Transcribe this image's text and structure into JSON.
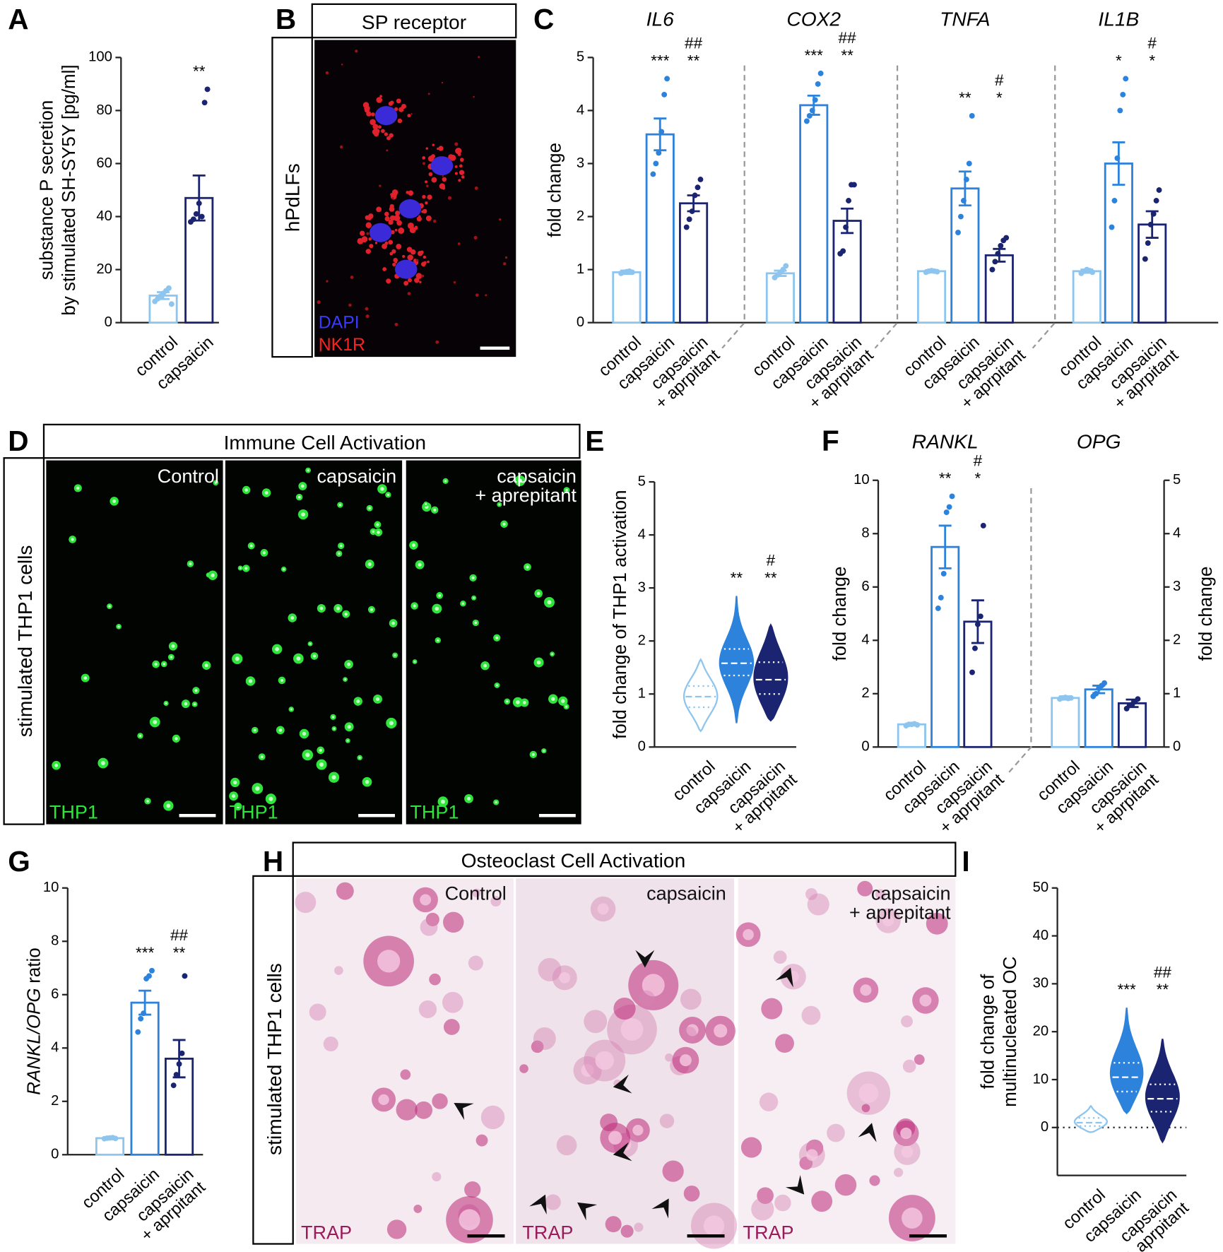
{
  "panels": {
    "labels": [
      "A",
      "B",
      "C",
      "D",
      "E",
      "F",
      "G",
      "H",
      "I"
    ]
  },
  "images": {
    "B": {
      "header": "SP receptor",
      "side": "hPdLFs",
      "stains": [
        "DAPI",
        "NK1R"
      ]
    },
    "D": {
      "header": "Immune Cell Activation",
      "side": "stimulated THP1 cells",
      "conditions": [
        "Control",
        "capsaicin",
        [
          "capsaicin",
          "+ aprepitant"
        ]
      ],
      "stain": "THP1"
    },
    "H": {
      "header": "Osteoclast Cell Activation",
      "side": "stimulated THP1 cells",
      "conditions": [
        "Control",
        "capsaicin",
        [
          "capsaicin",
          "+ aprepitant"
        ]
      ],
      "stain": "TRAP"
    }
  },
  "chart_data": [
    {
      "type": "bar",
      "ylabel": [
        "substance P secretion",
        "by stimulated SH-SY5Y [pg/ml]"
      ],
      "categories": [
        "control",
        "capsaicin"
      ],
      "colors": [
        "#8ec5ee",
        "#1a2470"
      ],
      "values": [
        10.2,
        47
      ],
      "errors": [
        1.3,
        8.5
      ],
      "points": [
        [
          8,
          9,
          10,
          11,
          12,
          13,
          7
        ],
        [
          38,
          39,
          41,
          45,
          40,
          83,
          88
        ]
      ],
      "significance": [
        null,
        "**"
      ],
      "ylim": [
        0,
        100
      ],
      "yticks": [
        0,
        20,
        40,
        60,
        80,
        100
      ]
    },
    {
      "type": "grouped_bar",
      "ylabel": [
        "fold change"
      ],
      "categories": [
        "control",
        "capsaicin",
        [
          "capsaicin",
          "+ aprpitant"
        ]
      ],
      "colors": [
        "#8ec5ee",
        "#2d83dc",
        "#1a2470"
      ],
      "ylim": [
        0,
        5
      ],
      "yticks": [
        0,
        1,
        2,
        3,
        4,
        5
      ],
      "groups": [
        {
          "name": "IL6",
          "values": [
            0.95,
            3.55,
            2.25
          ],
          "errors": [
            0.03,
            0.3,
            0.15
          ],
          "points": [
            [
              0.93,
              0.95,
              0.96,
              0.97,
              0.95
            ],
            [
              2.8,
              3.0,
              3.2,
              3.6,
              4.3,
              4.6
            ],
            [
              1.8,
              1.95,
              2.1,
              2.4,
              2.55,
              2.7
            ]
          ],
          "significance": [
            null,
            "***",
            "**"
          ],
          "significance_vs_capsaicin": [
            null,
            null,
            "##"
          ]
        },
        {
          "name": "COX2",
          "values": [
            0.93,
            4.1,
            1.92
          ],
          "errors": [
            0.05,
            0.18,
            0.23
          ],
          "points": [
            [
              0.85,
              0.9,
              0.95,
              1.0,
              1.07
            ],
            [
              3.8,
              3.9,
              4.0,
              4.2,
              4.5,
              4.7
            ],
            [
              1.3,
              1.35,
              1.8,
              2.3,
              2.6,
              2.6
            ]
          ],
          "significance": [
            null,
            "***",
            "**"
          ],
          "significance_vs_capsaicin": [
            null,
            null,
            "##"
          ]
        },
        {
          "name": "TNFA",
          "values": [
            0.97,
            2.53,
            1.27
          ],
          "errors": [
            0.02,
            0.32,
            0.12
          ],
          "points": [
            [
              0.95,
              0.97,
              0.98,
              0.97,
              0.96
            ],
            [
              1.7,
              2.0,
              2.3,
              2.7,
              3.0,
              3.9
            ],
            [
              1.0,
              1.15,
              1.3,
              1.45,
              1.55,
              1.6
            ]
          ],
          "significance": [
            null,
            "**",
            "*"
          ],
          "significance_vs_capsaicin": [
            null,
            null,
            "#"
          ]
        },
        {
          "name": "IL1B",
          "values": [
            0.97,
            3.0,
            1.85
          ],
          "errors": [
            0.03,
            0.4,
            0.25
          ],
          "points": [
            [
              0.93,
              0.97,
              1.0,
              0.98,
              0.95
            ],
            [
              1.8,
              2.3,
              3.1,
              4.0,
              4.3,
              4.6
            ],
            [
              1.2,
              1.5,
              1.85,
              2.05,
              2.3,
              2.5
            ]
          ],
          "significance": [
            null,
            "*",
            "*"
          ],
          "significance_vs_capsaicin": [
            null,
            null,
            "#"
          ]
        }
      ]
    },
    {
      "type": "violin",
      "ylabel": [
        "fold change of THP1 activation"
      ],
      "categories": [
        "control",
        "capsaicin",
        [
          "capsaicin",
          "+ aprpitant"
        ]
      ],
      "colors": [
        "#8ec5ee",
        "#2d83dc",
        "#1a2470"
      ],
      "min": [
        0.3,
        0.45,
        0.5
      ],
      "q1": [
        0.75,
        1.35,
        1.0
      ],
      "median": [
        0.95,
        1.58,
        1.27
      ],
      "q3": [
        1.15,
        1.85,
        1.6
      ],
      "max": [
        1.65,
        2.85,
        2.3
      ],
      "significance": [
        null,
        "**",
        "**"
      ],
      "significance_vs_capsaicin": [
        null,
        null,
        "#"
      ],
      "ylim": [
        0,
        5
      ],
      "yticks": [
        0,
        1,
        2,
        3,
        4,
        5
      ]
    },
    {
      "type": "grouped_bar",
      "ylabel": [
        "fold change"
      ],
      "y2label": "fold change",
      "categories": [
        "control",
        "capsaicin",
        [
          "capsaicin",
          "+ aprpitant"
        ]
      ],
      "colors": [
        "#8ec5ee",
        "#2d83dc",
        "#1a2470"
      ],
      "ylim": [
        0,
        10
      ],
      "yticks": [
        0,
        2,
        4,
        6,
        8,
        10
      ],
      "y2lim": [
        0,
        5
      ],
      "y2ticks": [
        0,
        1,
        2,
        3,
        4,
        5
      ],
      "groups": [
        {
          "name": "RANKL",
          "axis": "y",
          "values": [
            0.85,
            7.5,
            4.7
          ],
          "errors": [
            0.03,
            0.8,
            0.8
          ],
          "points": [
            [
              0.8,
              0.85,
              0.85,
              0.87,
              0.83
            ],
            [
              5.2,
              5.6,
              6.5,
              8.8,
              9.0,
              9.4
            ],
            [
              2.8,
              3.7,
              4.6,
              4.9,
              8.3
            ]
          ],
          "significance": [
            null,
            "**",
            "*"
          ],
          "significance_vs_capsaicin": [
            null,
            null,
            "#"
          ]
        },
        {
          "name": "OPG",
          "axis": "y2",
          "values": [
            0.92,
            1.08,
            0.82
          ],
          "errors": [
            0.03,
            0.07,
            0.07
          ],
          "points": [
            [
              0.9,
              0.92,
              0.93,
              0.91,
              0.92
            ],
            [
              0.95,
              1.0,
              1.1,
              1.15,
              1.2
            ],
            [
              0.72,
              0.78,
              0.8,
              0.85,
              0.9
            ]
          ]
        }
      ]
    },
    {
      "type": "bar",
      "ylabel_parts": [
        "RANKL/OPG",
        "ratio"
      ],
      "categories": [
        "control",
        "capsaicin",
        [
          "capsaicin",
          "+ aprpitant"
        ]
      ],
      "colors": [
        "#8ec5ee",
        "#2d83dc",
        "#1a2470"
      ],
      "values": [
        0.62,
        5.7,
        3.6
      ],
      "errors": [
        0.03,
        0.45,
        0.7
      ],
      "points": [
        [
          0.6,
          0.62,
          0.63,
          0.64,
          0.61
        ],
        [
          4.6,
          5.1,
          5.3,
          6.6,
          6.7,
          6.9
        ],
        [
          2.6,
          3.0,
          3.4,
          3.8,
          6.7
        ]
      ],
      "significance": [
        null,
        "***",
        "**"
      ],
      "significance_vs_capsaicin": [
        null,
        null,
        "##"
      ],
      "ylim": [
        0,
        10
      ],
      "yticks": [
        0,
        2,
        4,
        6,
        8,
        10
      ]
    },
    {
      "type": "violin",
      "ylabel": [
        "fold change of",
        "multinucleated OC"
      ],
      "categories": [
        "control",
        "capsaicin",
        [
          "capsaicin",
          "+ aprpitant"
        ]
      ],
      "colors": [
        "#8ec5ee",
        "#2d83dc",
        "#1a2470"
      ],
      "min": [
        -1,
        3,
        -3
      ],
      "q1": [
        0.3,
        7.5,
        3.3
      ],
      "median": [
        1,
        10.5,
        6
      ],
      "q3": [
        2,
        13.5,
        9
      ],
      "max": [
        4.5,
        25,
        18.5
      ],
      "significance": [
        null,
        "***",
        "**"
      ],
      "significance_vs_capsaicin": [
        null,
        null,
        "##"
      ],
      "hline": 0,
      "ylim": [
        -10,
        50
      ],
      "yticks": [
        0,
        10,
        20,
        30,
        40,
        50
      ]
    }
  ]
}
